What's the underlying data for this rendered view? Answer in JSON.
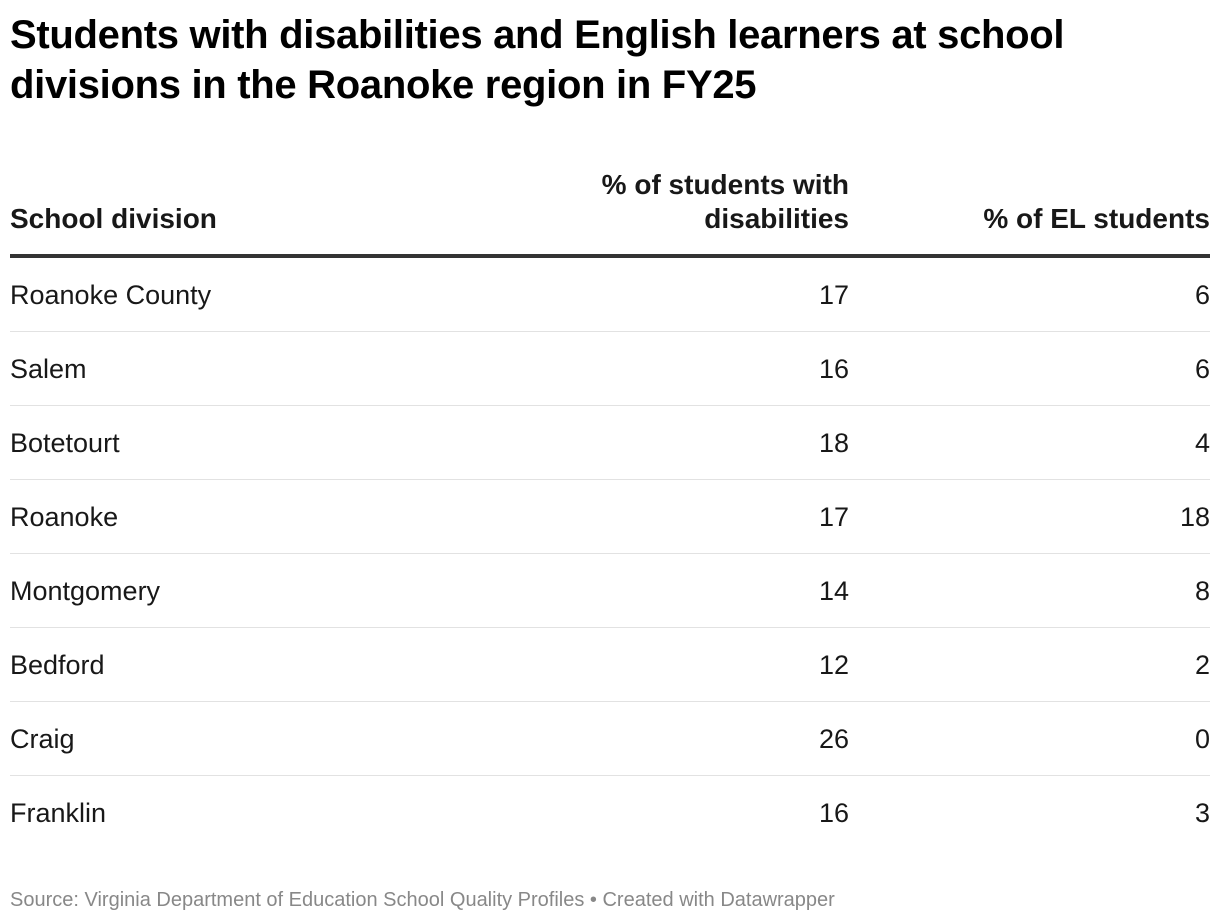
{
  "chart_data": {
    "type": "table",
    "title": "Students with disabilities and English learners at school divisions in the Roanoke region in FY25",
    "columns": [
      "School division",
      "% of students with disabilities",
      "% of EL students"
    ],
    "rows": [
      {
        "division": "Roanoke County",
        "disabilities": "17",
        "el": "6"
      },
      {
        "division": "Salem",
        "disabilities": "16",
        "el": "6"
      },
      {
        "division": "Botetourt",
        "disabilities": "18",
        "el": "4"
      },
      {
        "division": "Roanoke",
        "disabilities": "17",
        "el": "18"
      },
      {
        "division": "Montgomery",
        "disabilities": "14",
        "el": "8"
      },
      {
        "division": "Bedford",
        "disabilities": "12",
        "el": "2"
      },
      {
        "division": "Craig",
        "disabilities": "26",
        "el": "0"
      },
      {
        "division": "Franklin",
        "disabilities": "16",
        "el": "3"
      }
    ],
    "footer": "Source: Virginia Department of Education School Quality Profiles • Created with Datawrapper"
  }
}
